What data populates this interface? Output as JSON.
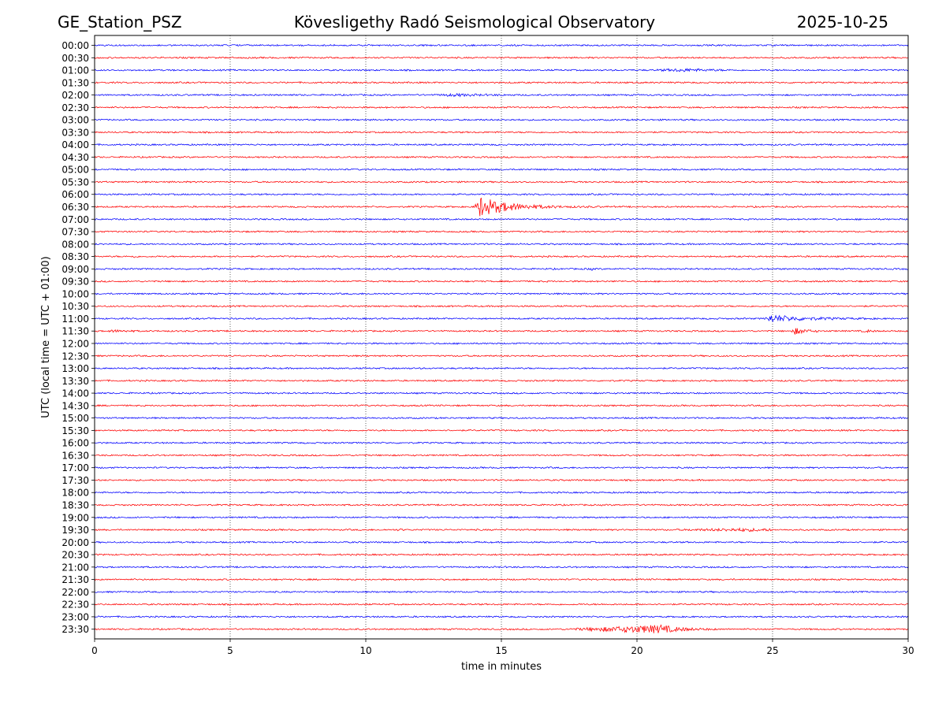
{
  "header": {
    "station": "GE_Station_PSZ",
    "observatory": "Kövesligethy Radó Seismological Observatory",
    "date": "2025-10-25"
  },
  "chart_data": {
    "type": "line",
    "title": "Kövesligethy Radó Seismological Observatory",
    "xlabel": "time in minutes",
    "ylabel": "UTC (local time = UTC + 01:00)",
    "xlim": [
      0,
      30
    ],
    "x_ticks": [
      0,
      5,
      10,
      15,
      20,
      25,
      30
    ],
    "x_tick_labels": [
      "0",
      "5",
      "10",
      "15",
      "20",
      "25",
      "30"
    ],
    "grid": "vertical dotted lines at every 5 minutes",
    "row_colors": [
      "#0000ff",
      "#ff0000"
    ],
    "rows": [
      "00:00",
      "00:30",
      "01:00",
      "01:30",
      "02:00",
      "02:30",
      "03:00",
      "03:30",
      "04:00",
      "04:30",
      "05:00",
      "05:30",
      "06:00",
      "06:30",
      "07:00",
      "07:30",
      "08:00",
      "08:30",
      "09:00",
      "09:30",
      "10:00",
      "10:30",
      "11:00",
      "11:30",
      "12:00",
      "12:30",
      "13:00",
      "13:30",
      "14:00",
      "14:30",
      "15:00",
      "15:30",
      "16:00",
      "16:30",
      "17:00",
      "17:30",
      "18:00",
      "18:30",
      "19:00",
      "19:30",
      "20:00",
      "20:30",
      "21:00",
      "21:30",
      "22:00",
      "22:30",
      "23:00",
      "23:30"
    ],
    "events": [
      {
        "row": "01:00",
        "start_min": 20.5,
        "end_min": 23.5,
        "peak_min": 21.8,
        "amplitude": 0.18,
        "decay": 0.9
      },
      {
        "row": "02:00",
        "start_min": 12.4,
        "end_min": 15.5,
        "peak_min": 13.3,
        "amplitude": 0.15,
        "decay": 1.0
      },
      {
        "row": "06:30",
        "start_min": 14.0,
        "end_min": 19.0,
        "peak_min": 14.2,
        "amplitude": 1.6,
        "decay": 1.0
      },
      {
        "row": "08:30",
        "start_min": 1.3,
        "end_min": 1.6,
        "peak_min": 1.45,
        "amplitude": 0.12,
        "decay": 0.2
      },
      {
        "row": "09:00",
        "start_min": 18.0,
        "end_min": 18.5,
        "peak_min": 18.3,
        "amplitude": 0.1,
        "decay": 0.3
      },
      {
        "row": "11:00",
        "start_min": 24.7,
        "end_min": 29.0,
        "peak_min": 24.9,
        "amplitude": 0.55,
        "decay": 1.2
      },
      {
        "row": "11:30",
        "start_min": 0.4,
        "end_min": 1.5,
        "peak_min": 0.7,
        "amplitude": 0.12,
        "decay": 0.6
      },
      {
        "row": "11:30",
        "start_min": 25.7,
        "end_min": 26.8,
        "peak_min": 25.8,
        "amplitude": 0.5,
        "decay": 0.4
      },
      {
        "row": "11:30",
        "start_min": 28.2,
        "end_min": 28.8,
        "peak_min": 28.5,
        "amplitude": 0.12,
        "decay": 0.3
      },
      {
        "row": "19:30",
        "start_min": 11.1,
        "end_min": 11.4,
        "peak_min": 11.25,
        "amplitude": 0.1,
        "decay": 0.2
      },
      {
        "row": "19:30",
        "start_min": 21.3,
        "end_min": 25.0,
        "peak_min": 24.0,
        "amplitude": 0.18,
        "decay": 1.5
      },
      {
        "row": "23:30",
        "start_min": 17.3,
        "end_min": 23.0,
        "peak_min": 20.9,
        "amplitude": 0.6,
        "decay": 0.7
      }
    ]
  }
}
